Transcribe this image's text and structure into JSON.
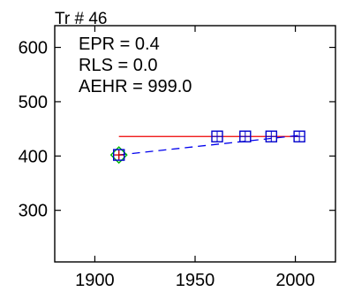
{
  "chart_data": {
    "type": "scatter",
    "title": "Tr # 46",
    "annotations": [
      "EPR = 0.4",
      "RLS = 0.0",
      "AEHR = 999.0"
    ],
    "xlim": [
      1880,
      2020
    ],
    "ylim": [
      205,
      640
    ],
    "x_ticks": [
      1900,
      1950,
      2000
    ],
    "y_ticks": [
      300,
      400,
      500,
      600
    ],
    "grid": false,
    "points": [
      {
        "x": 1912,
        "y": 402,
        "marker": "square",
        "color": "#0000cc"
      },
      {
        "x": 1961,
        "y": 436,
        "marker": "square",
        "color": "#0000cc"
      },
      {
        "x": 1975,
        "y": 436,
        "marker": "square",
        "color": "#0000cc"
      },
      {
        "x": 1988,
        "y": 436,
        "marker": "square",
        "color": "#0000cc"
      },
      {
        "x": 2002,
        "y": 436,
        "marker": "square",
        "color": "#0000cc"
      }
    ],
    "highlight_point": {
      "x": 1912,
      "y": 402,
      "marker": "diamond",
      "color": "#00bb00"
    },
    "marker_cross": {
      "x": 1912,
      "y": 402,
      "color": "#cc0000"
    },
    "reference_line": {
      "x": [
        1912,
        2002
      ],
      "y": [
        436,
        436
      ],
      "color": "#ee0000",
      "style": "solid"
    },
    "trend_line": {
      "x": [
        1912,
        2002
      ],
      "y": [
        402,
        438
      ],
      "color": "#0000ee",
      "style": "dashed"
    }
  }
}
